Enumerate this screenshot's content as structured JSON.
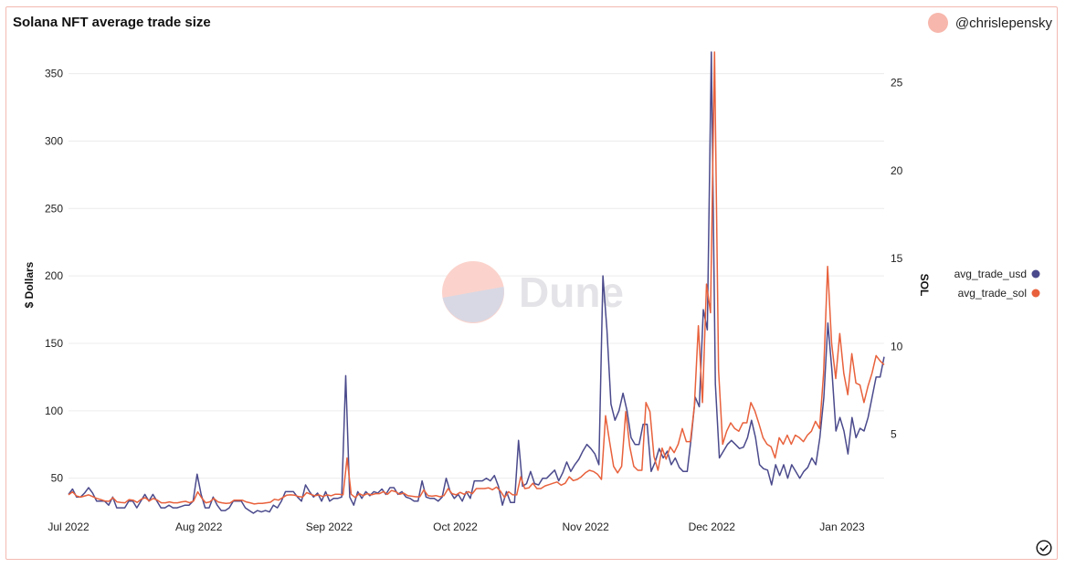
{
  "header": {
    "title": "Solana NFT average trade size",
    "author": "@chrislepensky"
  },
  "watermark": "Dune",
  "colors": {
    "usd": "#4b4a8c",
    "sol": "#e8613c",
    "grid": "#ececec",
    "avatar": "#f7b7ac"
  },
  "chart_data": {
    "type": "line",
    "xlabel": "",
    "ylabel": "$ Dollars",
    "y2label": "SOL",
    "ylim": [
      22,
      366
    ],
    "y2lim": [
      0.36,
      26.75
    ],
    "y_ticks": [
      50,
      100,
      150,
      200,
      250,
      300,
      350
    ],
    "y2_ticks": [
      5,
      10,
      15,
      20,
      25
    ],
    "x_ticks": [
      {
        "label": "Jul 2022",
        "day": 0
      },
      {
        "label": "Aug 2022",
        "day": 31
      },
      {
        "label": "Sep 2022",
        "day": 62
      },
      {
        "label": "Oct 2022",
        "day": 92
      },
      {
        "label": "Nov 2022",
        "day": 123
      },
      {
        "label": "Dec 2022",
        "day": 153
      },
      {
        "label": "Jan 2023",
        "day": 184
      }
    ],
    "x_start_date": "2022-07-01",
    "x_end_day": 194,
    "legend_position": "right",
    "grid": true,
    "series": [
      {
        "name": "avg_trade_usd",
        "axis": "left",
        "values": [
          38,
          42,
          36,
          36,
          39,
          43,
          39,
          33,
          33,
          33,
          30,
          36,
          28,
          28,
          28,
          33,
          33,
          28,
          33,
          38,
          33,
          38,
          33,
          28,
          28,
          30,
          28,
          28,
          29,
          30,
          30,
          33,
          53,
          38,
          28,
          28,
          36,
          30,
          26,
          26,
          28,
          33,
          33,
          33,
          28,
          26,
          24,
          26,
          25,
          26,
          25,
          30,
          28,
          33,
          40,
          40,
          40,
          36,
          33,
          45,
          40,
          36,
          39,
          33,
          40,
          33,
          35,
          35,
          36,
          126,
          36,
          30,
          40,
          35,
          40,
          37,
          40,
          39,
          42,
          38,
          43,
          43,
          38,
          40,
          36,
          35,
          33,
          33,
          48,
          36,
          35,
          35,
          33,
          36,
          50,
          40,
          35,
          38,
          33,
          40,
          35,
          48,
          48,
          48,
          50,
          48,
          52,
          44,
          30,
          40,
          32,
          32,
          78,
          44,
          46,
          55,
          46,
          45,
          50,
          50,
          53,
          56,
          48,
          54,
          62,
          55,
          60,
          64,
          70,
          75,
          72,
          68,
          60,
          200,
          160,
          105,
          93,
          100,
          113,
          100,
          80,
          75,
          75,
          90,
          90,
          55,
          62,
          72,
          65,
          70,
          60,
          65,
          58,
          55,
          55,
          80,
          110,
          103,
          175,
          160,
          366,
          120,
          65,
          70,
          75,
          78,
          75,
          72,
          73,
          80,
          93,
          80,
          60,
          57,
          56,
          45,
          60,
          52,
          60,
          50,
          60,
          55,
          50,
          55,
          58,
          65,
          60,
          80,
          110,
          165,
          130,
          85,
          95,
          85,
          68,
          95,
          80,
          87,
          85,
          95,
          110,
          125,
          125,
          140
        ]
      },
      {
        "name": "avg_trade_sol",
        "axis": "right",
        "values": [
          1.56,
          1.73,
          1.5,
          1.43,
          1.5,
          1.56,
          1.46,
          1.36,
          1.29,
          1.21,
          1.19,
          1.4,
          1.16,
          1.13,
          1.11,
          1.29,
          1.26,
          1.13,
          1.31,
          1.4,
          1.21,
          1.36,
          1.26,
          1.11,
          1.11,
          1.16,
          1.11,
          1.11,
          1.16,
          1.19,
          1.11,
          1.21,
          1.73,
          1.38,
          1.11,
          1.16,
          1.36,
          1.16,
          1.11,
          1.07,
          1.09,
          1.26,
          1.26,
          1.26,
          1.16,
          1.11,
          1.04,
          1.07,
          1.07,
          1.11,
          1.14,
          1.31,
          1.26,
          1.4,
          1.54,
          1.56,
          1.54,
          1.46,
          1.43,
          1.69,
          1.59,
          1.51,
          1.56,
          1.46,
          1.56,
          1.51,
          1.59,
          1.59,
          1.56,
          3.66,
          1.59,
          1.41,
          1.63,
          1.52,
          1.63,
          1.56,
          1.63,
          1.63,
          1.74,
          1.59,
          1.81,
          1.74,
          1.59,
          1.66,
          1.52,
          1.48,
          1.45,
          1.45,
          1.84,
          1.52,
          1.48,
          1.52,
          1.45,
          1.52,
          1.92,
          1.63,
          1.56,
          1.7,
          1.59,
          1.74,
          1.63,
          1.92,
          1.92,
          1.92,
          1.96,
          1.85,
          2.0,
          1.77,
          1.41,
          1.74,
          1.56,
          1.56,
          2.59,
          1.92,
          1.96,
          2.22,
          1.92,
          1.92,
          2.07,
          2.14,
          2.22,
          2.29,
          2.11,
          2.22,
          2.59,
          2.37,
          2.44,
          2.59,
          2.81,
          2.96,
          2.89,
          2.74,
          2.44,
          6.06,
          4.59,
          3.18,
          2.81,
          3.18,
          6.29,
          4.29,
          3.18,
          2.96,
          2.96,
          6.81,
          6.29,
          3.74,
          2.96,
          4.22,
          3.59,
          4.29,
          3.96,
          4.44,
          5.33,
          4.59,
          4.59,
          6.59,
          11.18,
          6.81,
          13.55,
          11.92,
          26.75,
          8.66,
          4.44,
          5.18,
          5.66,
          5.33,
          5.18,
          5.66,
          5.66,
          6.81,
          6.33,
          5.59,
          4.81,
          4.44,
          4.29,
          3.66,
          4.81,
          4.44,
          4.96,
          4.44,
          4.96,
          4.81,
          4.59,
          4.96,
          5.18,
          5.74,
          5.33,
          8.48,
          14.55,
          10.18,
          8.18,
          10.74,
          8.48,
          7.26,
          9.59,
          7.92,
          7.81,
          6.81,
          7.74,
          8.48,
          9.48,
          9.18,
          8.96
        ]
      }
    ]
  }
}
